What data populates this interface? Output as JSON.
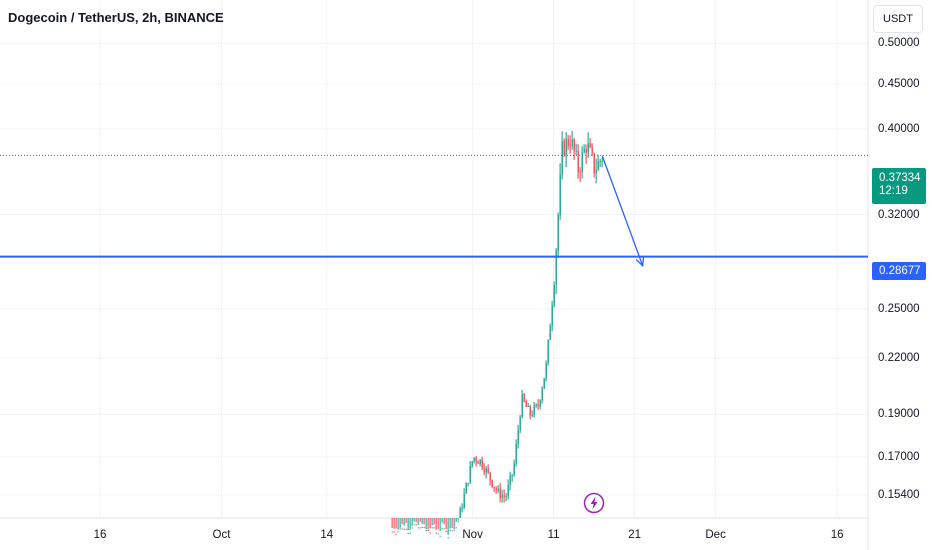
{
  "header": {
    "symbol_title": "Dogecoin / TetherUS, 2h, BINANCE",
    "currency_label": "USDT"
  },
  "price_axis": {
    "ticks": [
      "0.50000",
      "0.45000",
      "0.40000",
      "0.32000",
      "0.25000",
      "0.22000",
      "0.19000",
      "0.17000",
      "0.15400"
    ],
    "current_price": "0.37334",
    "countdown": "12:19",
    "line_price": "0.28677"
  },
  "time_axis": {
    "ticks": [
      "16",
      "Oct",
      "14",
      "Nov",
      "11",
      "21",
      "Dec",
      "16"
    ]
  },
  "colors": {
    "up": "#089981",
    "down": "#f23645",
    "horizontal_line": "#2962ff",
    "arrow": "#2962ff",
    "grid": "#f0f3fa",
    "flash_icon": "#9c27b0"
  },
  "icons": {
    "flash": "lightning-bolt-icon"
  },
  "chart_data": {
    "type": "candlestick",
    "title": "Dogecoin / TetherUS, 2h, BINANCE",
    "scale": "log",
    "ylim": [
      0.145,
      0.56
    ],
    "y_ticks": [
      0.5,
      0.45,
      0.4,
      0.32,
      0.25,
      0.22,
      0.19,
      0.17,
      0.154
    ],
    "x_ticks": [
      "16",
      "Oct",
      "14",
      "Nov",
      "11",
      "21",
      "Dec",
      "16"
    ],
    "current_price": 0.37334,
    "horizontal_line": 0.28677,
    "grid": true,
    "path": [
      [
        "Oct 22",
        0.14
      ],
      [
        "Oct 24",
        0.141
      ],
      [
        "Oct 26",
        0.14
      ],
      [
        "Oct 29",
        0.139
      ],
      [
        "Oct 30",
        0.142
      ],
      [
        "Nov 1",
        0.17
      ],
      [
        "Nov 2",
        0.168
      ],
      [
        "Nov 4",
        0.155
      ],
      [
        "Nov 5",
        0.153
      ],
      [
        "Nov 6",
        0.165
      ],
      [
        "Nov 7",
        0.198
      ],
      [
        "Nov 8",
        0.19
      ],
      [
        "Nov 9",
        0.194
      ],
      [
        "Nov 10",
        0.215
      ],
      [
        "Nov 11",
        0.27
      ],
      [
        "Nov 12",
        0.38
      ],
      [
        "Nov 13",
        0.39
      ],
      [
        "Nov 14",
        0.36
      ],
      [
        "Nov 15",
        0.385
      ],
      [
        "Nov 16",
        0.36
      ],
      [
        "Nov 17",
        0.373
      ]
    ],
    "projection_arrow": {
      "from": [
        "Nov 17",
        0.373
      ],
      "to": [
        "Nov 22",
        0.28
      ]
    }
  }
}
